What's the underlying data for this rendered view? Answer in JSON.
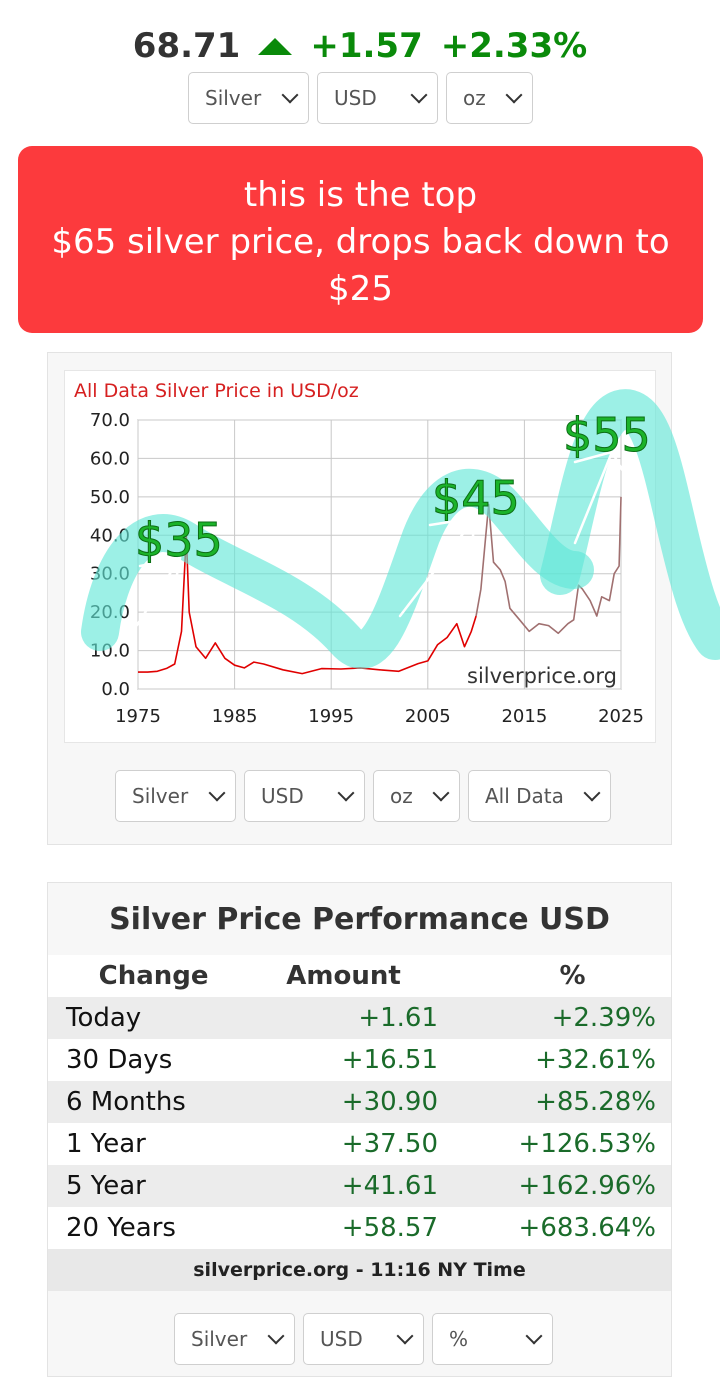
{
  "ticker": {
    "price": "68.71",
    "change": "+1.57",
    "percent": "+2.33%",
    "direction_icon": "up-triangle-icon",
    "up_color": "#0a8a0a"
  },
  "top_selects": {
    "metal": "Silver",
    "currency": "USD",
    "unit": "oz"
  },
  "banner": {
    "lines": [
      "this is the top",
      "$65 silver price, drops back down to",
      "$25"
    ],
    "color": "#fc3a3d"
  },
  "chart": {
    "source_label": "silverprice.org",
    "annotations": [
      "$35",
      "$45",
      "$55"
    ],
    "selects": {
      "metal": "Silver",
      "currency": "USD",
      "unit": "oz",
      "range": "All Data"
    }
  },
  "chart_data": {
    "type": "line",
    "title": "All Data Silver Price in USD/oz",
    "xlabel": "",
    "ylabel": "",
    "xlim": [
      1975,
      2025
    ],
    "ylim": [
      0,
      70
    ],
    "x_ticks": [
      "1975",
      "1985",
      "1995",
      "2005",
      "2015",
      "2025"
    ],
    "y_ticks": [
      "0.0",
      "10.0",
      "20.0",
      "30.0",
      "40.0",
      "50.0",
      "60.0",
      "70.0"
    ],
    "grid": true,
    "series": [
      {
        "color": "#e00000",
        "x": [
          1975,
          1976,
          1977,
          1978,
          1978.8,
          1979.5,
          1980.0,
          1980.3,
          1981,
          1982,
          1983,
          1984,
          1985,
          1986,
          1987,
          1988,
          1990,
          1992,
          1994,
          1996,
          1998,
          2000,
          2002,
          2004,
          2005,
          2006,
          2007,
          2008,
          2008.8,
          2009.5,
          2010
        ],
        "y": [
          4.4,
          4.4,
          4.6,
          5.4,
          6.5,
          15,
          40,
          20,
          11,
          8,
          12,
          8,
          6.2,
          5.5,
          7,
          6.5,
          5,
          4,
          5.3,
          5.2,
          5.5,
          5,
          4.6,
          6.6,
          7.3,
          11.5,
          13.4,
          17,
          11,
          15,
          19
        ]
      },
      {
        "color": "#a07070",
        "x": [
          2010,
          2010.5,
          2011,
          2011.3,
          2011.8,
          2012.5,
          2013,
          2013.5,
          2014.5,
          2015.5,
          2016.5,
          2017.5,
          2018.5,
          2019.5,
          2020.1,
          2020.6,
          2021,
          2021.8,
          2022.5,
          2023,
          2023.8,
          2024.3,
          2024.8,
          2025
        ],
        "y": [
          19,
          26,
          40,
          48,
          33,
          31,
          28,
          21,
          18,
          15,
          17,
          16.5,
          14.5,
          17,
          18,
          27,
          26,
          23,
          19,
          24,
          23,
          30,
          32,
          50
        ]
      }
    ]
  },
  "performance": {
    "title": "Silver Price Performance USD",
    "headers": [
      "Change",
      "Amount",
      "%"
    ],
    "rows": [
      [
        "Today",
        "+1.61",
        "+2.39%"
      ],
      [
        "30 Days",
        "+16.51",
        "+32.61%"
      ],
      [
        "6 Months",
        "+30.90",
        "+85.28%"
      ],
      [
        "1 Year",
        "+37.50",
        "+126.53%"
      ],
      [
        "5 Year",
        "+41.61",
        "+162.96%"
      ],
      [
        "20 Years",
        "+58.57",
        "+683.64%"
      ]
    ],
    "footer": "silverprice.org - 11:16 NY Time",
    "selects": {
      "metal": "Silver",
      "currency": "USD",
      "unit": "%"
    }
  }
}
